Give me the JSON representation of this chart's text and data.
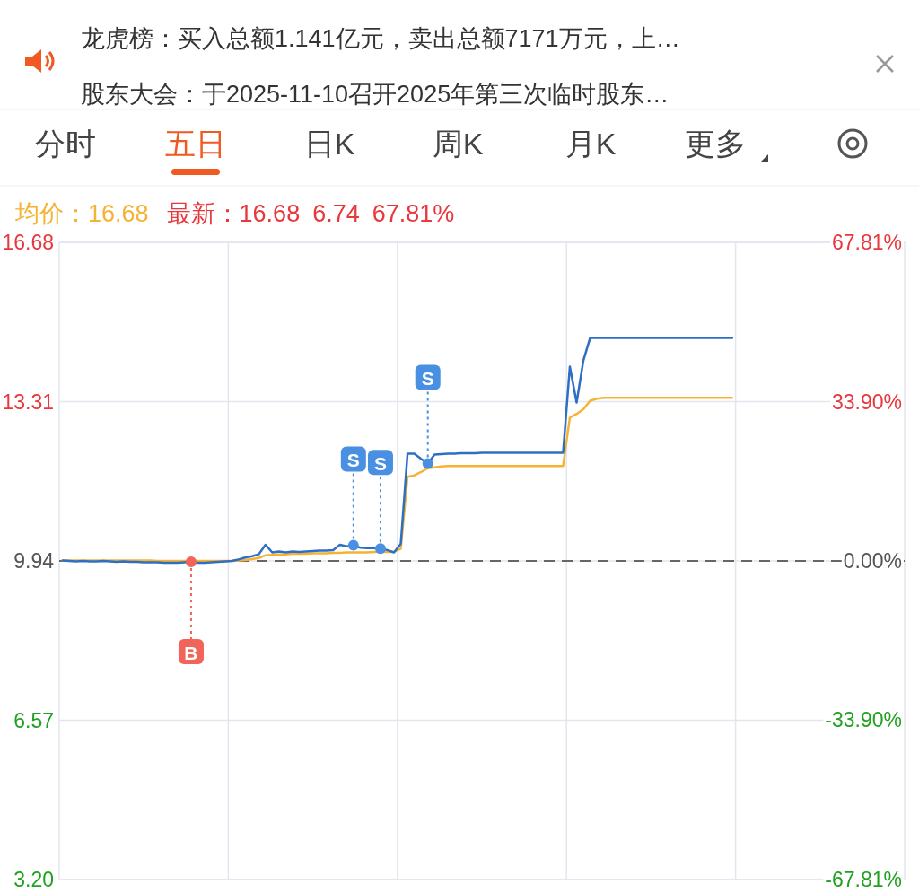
{
  "chart_data": {
    "type": "line",
    "annotations": [
      "龙虎榜：买入总额1.141亿元，卖出总额7171万元，上…",
      "股东大会：于2025-11-10召开2025年第三次临时股东…",
      "分时",
      "五日",
      "日K",
      "周K",
      "月K",
      "更多",
      "均价：16.68",
      "最新：16.68",
      "6.74",
      "67.81%"
    ],
    "categories": [
      null,
      null,
      null,
      null,
      null,
      null,
      null,
      null,
      null,
      null,
      null,
      null,
      null,
      null,
      null,
      null,
      null,
      null,
      null,
      null,
      null,
      null,
      null,
      null,
      null,
      null,
      null,
      null,
      null,
      null,
      null,
      null,
      null,
      null,
      null,
      null,
      null,
      null,
      null,
      null,
      null,
      null,
      null,
      null,
      null,
      null,
      null,
      null,
      null,
      null,
      null,
      null,
      null,
      null,
      null,
      null,
      null,
      null,
      null,
      null,
      null,
      null,
      null,
      null,
      null,
      null,
      null,
      null,
      null,
      null,
      null,
      null,
      null,
      null,
      null,
      null,
      null,
      null,
      null,
      null,
      null,
      null,
      null,
      null,
      null,
      null,
      null,
      null,
      null,
      null,
      null,
      null,
      null,
      null,
      null,
      null,
      null,
      null,
      null,
      null,
      null,
      null,
      null,
      null,
      null,
      null,
      null,
      null,
      null,
      null,
      null,
      null,
      null,
      null,
      null,
      null,
      null,
      null,
      null,
      null,
      null,
      null,
      null,
      null,
      null
    ],
    "series": [
      {
        "color": "#f5b335",
        "values": [
          9.95,
          9.95,
          9.95,
          9.95,
          9.95,
          9.95,
          9.95,
          9.95,
          9.95,
          9.95,
          9.95,
          9.95,
          9.95,
          9.95,
          9.94,
          9.94,
          9.94,
          9.94,
          9.94,
          9.94,
          9.94,
          9.94,
          9.94,
          9.94,
          9.94,
          9.94,
          9.95,
          9.96,
          9.98,
          10.0,
          10.06,
          10.07,
          10.08,
          10.08,
          10.09,
          10.09,
          10.09,
          10.1,
          10.1,
          10.1,
          10.11,
          10.11,
          10.12,
          10.12,
          10.12,
          10.12,
          10.13,
          10.13,
          10.13,
          10.13,
          10.2,
          11.72,
          11.75,
          11.82,
          11.9,
          11.92,
          11.94,
          11.95,
          11.95,
          11.95,
          11.95,
          11.95,
          11.95,
          11.95,
          11.95,
          11.95,
          11.95,
          11.95,
          11.95,
          11.95,
          11.95,
          11.95,
          11.95,
          11.95,
          11.95,
          12.97,
          13.05,
          13.15,
          13.33,
          13.37,
          13.39,
          13.39,
          13.39,
          13.39,
          13.39,
          13.39,
          13.39,
          13.39,
          13.39,
          13.39,
          13.39,
          13.39,
          13.39,
          13.39,
          13.39,
          13.39,
          13.39,
          13.39,
          13.39,
          13.39,
          null,
          null,
          null,
          null,
          null,
          null,
          null,
          null,
          null,
          null,
          null,
          null,
          null,
          null,
          null,
          null,
          null,
          null,
          null,
          null,
          null,
          null,
          null,
          null,
          null
        ]
      },
      {
        "color": "#2e6fc4",
        "values": [
          9.95,
          9.94,
          9.93,
          9.94,
          9.93,
          9.93,
          9.94,
          9.93,
          9.92,
          9.93,
          9.92,
          9.92,
          9.91,
          9.91,
          9.91,
          9.9,
          9.9,
          9.9,
          9.91,
          9.92,
          9.9,
          9.9,
          9.91,
          9.92,
          9.93,
          9.94,
          9.97,
          10.01,
          10.04,
          10.08,
          10.28,
          10.12,
          10.14,
          10.12,
          10.14,
          10.13,
          10.14,
          10.15,
          10.16,
          10.16,
          10.17,
          10.28,
          10.25,
          10.27,
          10.22,
          10.21,
          10.21,
          10.2,
          10.17,
          10.12,
          10.3,
          12.21,
          12.21,
          12.1,
          12.0,
          12.19,
          12.2,
          12.21,
          12.21,
          12.22,
          12.22,
          12.22,
          12.23,
          12.23,
          12.23,
          12.23,
          12.23,
          12.23,
          12.23,
          12.23,
          12.23,
          12.23,
          12.23,
          12.23,
          12.23,
          14.05,
          13.29,
          14.18,
          14.66,
          14.66,
          14.66,
          14.66,
          14.66,
          14.66,
          14.66,
          14.66,
          14.66,
          14.66,
          14.66,
          14.66,
          14.66,
          14.66,
          14.66,
          14.66,
          14.66,
          14.66,
          14.66,
          14.66,
          14.66,
          14.66,
          null,
          null,
          null,
          null,
          null,
          null,
          null,
          null,
          null,
          null,
          null,
          null,
          null,
          null,
          null,
          null,
          null,
          null,
          null,
          null,
          null,
          null,
          null,
          null,
          null
        ]
      },
      {
        "type": "scatter",
        "marker": "circle",
        "name": "B",
        "color": "#f0645a",
        "values": [
          null,
          null,
          null,
          null,
          null,
          null,
          null,
          null,
          null,
          null,
          null,
          null,
          null,
          null,
          null,
          null,
          null,
          null,
          null,
          9.92,
          null,
          null,
          null,
          null,
          null,
          null,
          null,
          null,
          null,
          null,
          null,
          null,
          null,
          null,
          null,
          null,
          null,
          null,
          null,
          null,
          null,
          null,
          null,
          null,
          null,
          null,
          null,
          null,
          null,
          null,
          null,
          null,
          null,
          null,
          null,
          null,
          null,
          null,
          null,
          null,
          null,
          null,
          null,
          null,
          null,
          null,
          null,
          null,
          null,
          null,
          null,
          null,
          null,
          null,
          null,
          null,
          null,
          null,
          null,
          null,
          null,
          null,
          null,
          null,
          null,
          null,
          null,
          null,
          null,
          null,
          null,
          null,
          null,
          null,
          null,
          null,
          null,
          null,
          null,
          null,
          null,
          null,
          null,
          null,
          null,
          null,
          null,
          null,
          null,
          null,
          null,
          null,
          null,
          null,
          null,
          null,
          null,
          null,
          null,
          null,
          null,
          null,
          null,
          null,
          null
        ]
      },
      {
        "type": "scatter",
        "marker": "circle",
        "name": "S",
        "color": "#4a90e2",
        "values": [
          null,
          null,
          null,
          null,
          null,
          null,
          null,
          null,
          null,
          null,
          null,
          null,
          null,
          null,
          null,
          null,
          null,
          null,
          null,
          null,
          null,
          null,
          null,
          null,
          null,
          null,
          null,
          null,
          null,
          null,
          null,
          null,
          null,
          null,
          null,
          null,
          null,
          null,
          null,
          null,
          null,
          null,
          null,
          10.27,
          null,
          null,
          null,
          10.2,
          null,
          null,
          null,
          null,
          null,
          null,
          12.0,
          null,
          null,
          null,
          null,
          null,
          null,
          null,
          null,
          null,
          null,
          null,
          null,
          null,
          null,
          null,
          null,
          null,
          null,
          null,
          null,
          null,
          null,
          null,
          null,
          null,
          null,
          null,
          null,
          null,
          null,
          null,
          null,
          null,
          null,
          null,
          null,
          null,
          null,
          null,
          null,
          null,
          null,
          null,
          null,
          null,
          null,
          null,
          null,
          null,
          null,
          null,
          null,
          null,
          null,
          null,
          null,
          null,
          null,
          null,
          null,
          null,
          null,
          null,
          null,
          null,
          null,
          null,
          null,
          null,
          null
        ]
      }
    ],
    "ylim": [
      3.2,
      16.68
    ],
    "yticks": [
      {
        "value": 3.2,
        "label": "3.20"
      },
      6.57,
      9.94,
      13.31,
      16.68
    ],
    "y2lim": [
      -67.81,
      67.81
    ],
    "y2ticks": [
      {
        "value": -67.81,
        "label": "-67.81%"
      },
      {
        "value": -33.9,
        "label": "-33.90%"
      },
      {
        "value": 0,
        "label": "0.00%"
      },
      {
        "value": 33.9,
        "label": "33.90%"
      },
      {
        "value": 67.81,
        "label": "67.81%"
      }
    ],
    "ref_lines": [
      {
        "axis": "y",
        "value": 9.94,
        "color": "#666666",
        "line_style": "dashed"
      }
    ],
    "grid": true
  }
}
